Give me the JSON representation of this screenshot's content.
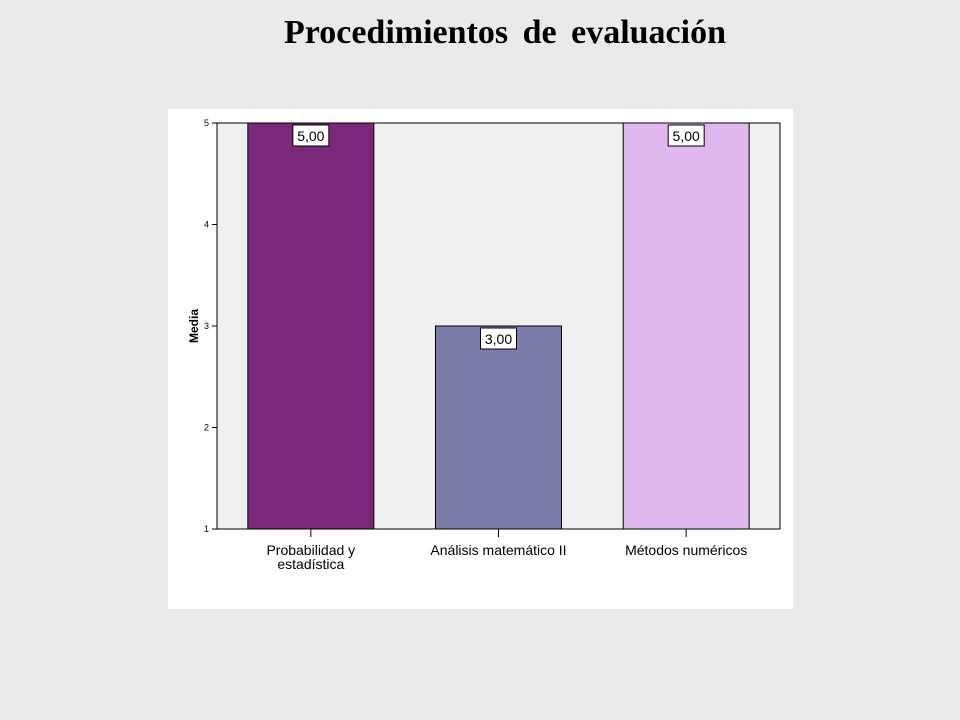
{
  "chart_data": {
    "type": "bar",
    "title": "Procedimientos de evaluación",
    "ylabel": "Media",
    "xlabel": "",
    "ylim": [
      1,
      5
    ],
    "yticks": [
      1,
      2,
      3,
      4,
      5
    ],
    "categories": [
      [
        "Probabilidad y",
        "estadística"
      ],
      [
        "Análisis matemático II"
      ],
      [
        "Métodos numéricos"
      ]
    ],
    "values": [
      5,
      3,
      5
    ],
    "data_labels": [
      "5,00",
      "3,00",
      "5,00"
    ],
    "colors": [
      "#7b2878",
      "#7b7ca8",
      "#dfb8f0"
    ],
    "plot_background": "#f0f0f0",
    "grid": false,
    "legend": "none"
  }
}
